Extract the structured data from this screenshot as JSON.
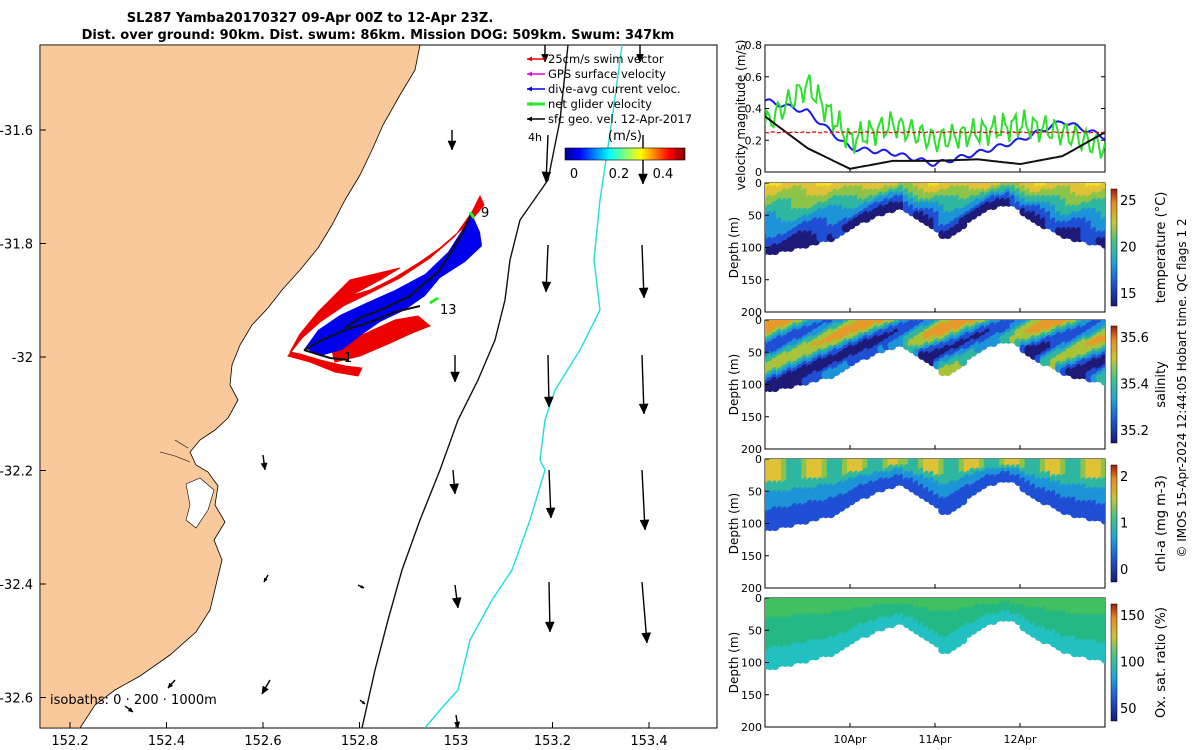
{
  "title": {
    "line1": "SL287 Yamba20170327 09-Apr 00Z to 12-Apr 23Z.",
    "line2": "Dist. over ground: 90km. Dist. swum: 86km. Mission DOG: 509km. Swum: 347km"
  },
  "colors": {
    "land": "#f9c89b",
    "track_blue": "#0000ee",
    "swim_red": "#ee0000",
    "net_green": "#22ee22",
    "isobath_200": "#000000",
    "isobath_1000": "#22dddd",
    "line_black": "#111111",
    "line_blue": "#1a1ae6",
    "line_green": "#2ee02e",
    "line_red_dashed": "#dd0000"
  },
  "map": {
    "x_ticks": [
      "152.2",
      "152.4",
      "152.6",
      "152.8",
      "153",
      "153.2",
      "153.4"
    ],
    "y_ticks": [
      "-31.6",
      "-31.8",
      "-32",
      "-32.2",
      "-32.4",
      "-32.6"
    ],
    "legend": [
      {
        "label": "25cm/s swim vector",
        "color": "#ee0000"
      },
      {
        "label": "GPS surface velocity",
        "color": "#ee00ee"
      },
      {
        "label": "dive-avg current veloc.",
        "color": "#0000ee"
      },
      {
        "label": "net glider velocity",
        "color": "#22ee22"
      },
      {
        "label": "sfc geo. vel. 12-Apr-2017",
        "color": "#000000"
      }
    ],
    "timestep_label": "4h",
    "colorbar_title": "(m/s)",
    "colorbar_ticks": [
      "0",
      "0.2",
      "0.4"
    ],
    "day_labels": [
      "9",
      "13",
      "1"
    ],
    "isobath_text": "isobaths: 0 · 200 · 1000m"
  },
  "right": {
    "velocity_ylabel": "velocity magnitude (m/s)",
    "velocity_ticks": [
      "0",
      "0.2",
      "0.4",
      "0.6",
      "0.8"
    ],
    "depth_label": "Depth (m)",
    "depth_ticks": [
      "0",
      "50",
      "100",
      "150",
      "200"
    ],
    "time_ticks": [
      "10Apr",
      "11Apr",
      "12Apr"
    ],
    "panels": [
      {
        "name": "temperature",
        "label": "temperature (°C)",
        "ticks": [
          "15",
          "20",
          "25"
        ]
      },
      {
        "name": "salinity",
        "label": "salinity",
        "ticks": [
          "35.2",
          "35.4",
          "35.6"
        ]
      },
      {
        "name": "chla",
        "label": "chl-a (mg m-3)",
        "ticks": [
          "0",
          "1",
          "2"
        ]
      },
      {
        "name": "oxygen",
        "label": "Ox. sat. ratio (%)",
        "ticks": [
          "50",
          "100",
          "150"
        ]
      }
    ],
    "credit": "© IMOS 15-Apr-2024 12:44:05 Hobart time. QC flags 1  2"
  },
  "chart_data": [
    {
      "type": "line",
      "ylabel": "velocity magnitude (m/s)",
      "ylim": [
        0,
        0.8
      ],
      "x": [
        "09-Apr 00Z",
        "09-Apr 12Z",
        "10-Apr 00Z",
        "10-Apr 12Z",
        "11-Apr 00Z",
        "11-Apr 12Z",
        "12-Apr 00Z",
        "12-Apr 12Z",
        "12-Apr 23Z"
      ],
      "series": [
        {
          "values": [
            0.45,
            0.38,
            0.15,
            0.12,
            0.05,
            0.12,
            0.2,
            0.32,
            0.22
          ]
        },
        {
          "values": [
            0.3,
            0.55,
            0.2,
            0.3,
            0.2,
            0.25,
            0.3,
            0.25,
            0.15
          ]
        },
        {
          "values": [
            0.35,
            0.15,
            0.02,
            0.07,
            0.07,
            0.08,
            0.05,
            0.1,
            0.25
          ]
        },
        {
          "values": [
            0.25,
            0.25,
            0.25,
            0.25,
            0.25,
            0.25,
            0.25,
            0.25,
            0.25
          ]
        }
      ]
    },
    {
      "type": "heatmap",
      "ylabel": "Depth (m)",
      "clabel": "temperature (°C)",
      "clim": [
        14,
        27
      ],
      "ylim": [
        200,
        0
      ]
    },
    {
      "type": "heatmap",
      "ylabel": "Depth (m)",
      "clabel": "salinity",
      "clim": [
        35.1,
        35.7
      ],
      "ylim": [
        200,
        0
      ]
    },
    {
      "type": "heatmap",
      "ylabel": "Depth (m)",
      "clabel": "chl-a (mg m-3)",
      "clim": [
        0,
        2
      ],
      "ylim": [
        200,
        0
      ]
    },
    {
      "type": "heatmap",
      "ylabel": "Depth (m)",
      "clabel": "Ox. sat. ratio (%)",
      "clim": [
        20,
        175
      ],
      "ylim": [
        200,
        0
      ]
    }
  ]
}
